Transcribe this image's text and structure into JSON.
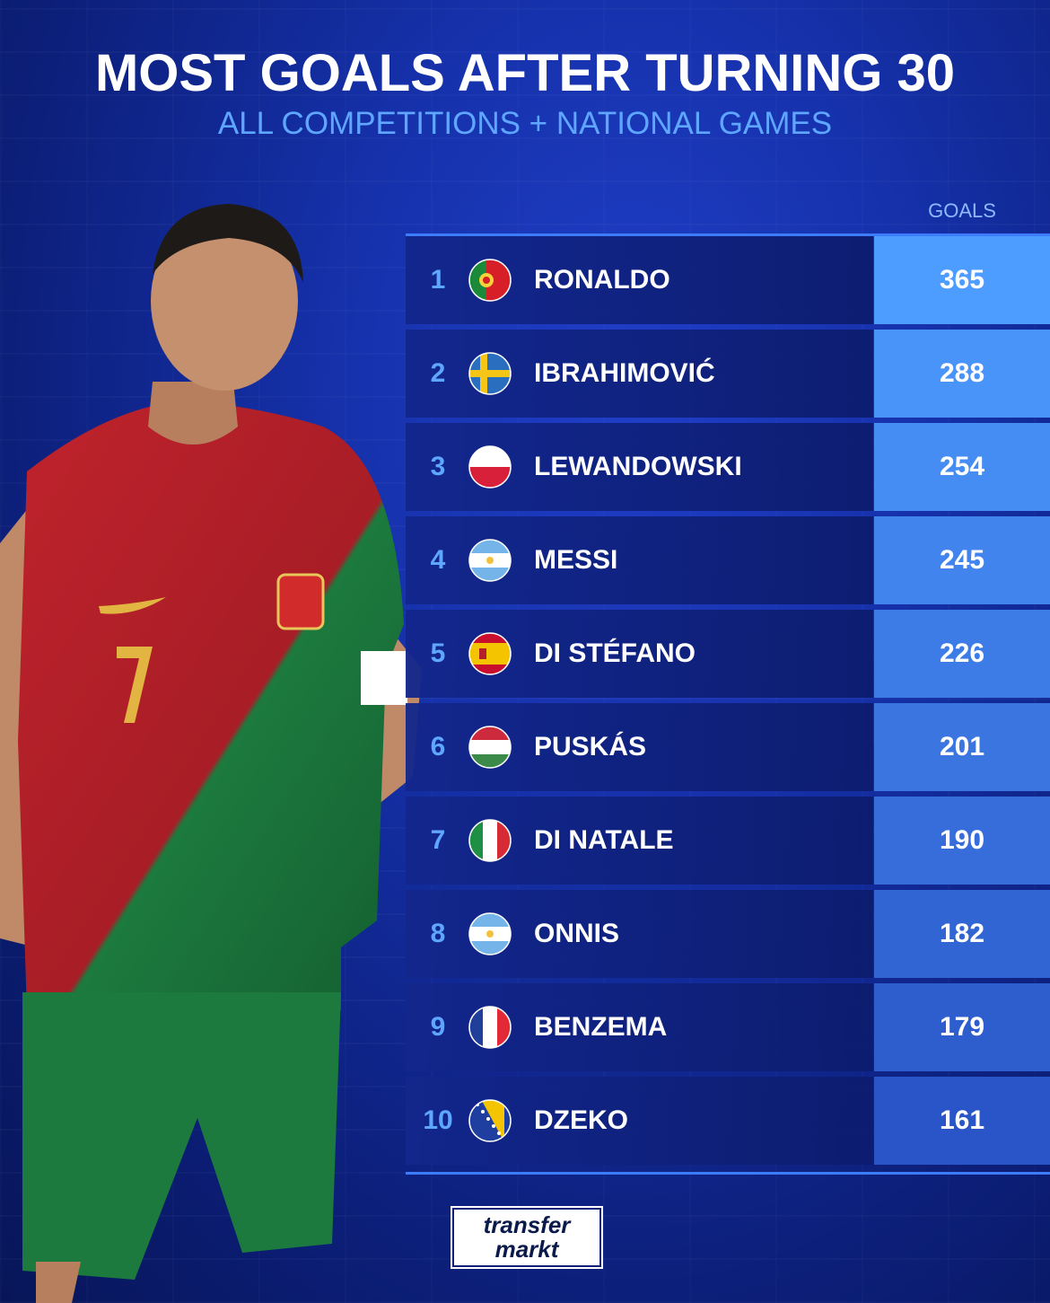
{
  "title": "MOST GOALS AFTER TURNING 30",
  "subtitle": "ALL COMPETITIONS + NATIONAL GAMES",
  "goals_header": "GOALS",
  "logo": {
    "line1": "transfer",
    "line2": "markt"
  },
  "colors": {
    "accent": "#5ea6ff",
    "goals_cell_top": "#4d9cff",
    "goals_cell_bottom": "#2a55c8",
    "row_bg": "#12268c"
  },
  "chart_data": {
    "type": "table",
    "title": "MOST GOALS AFTER TURNING 30",
    "subtitle": "ALL COMPETITIONS + NATIONAL GAMES",
    "columns": [
      "",
      "",
      "",
      "GOALS"
    ],
    "rows": [
      {
        "rank": "1",
        "flag": "portugal-flag-icon",
        "name": "RONALDO",
        "goals": 365
      },
      {
        "rank": "2",
        "flag": "sweden-flag-icon",
        "name": "IBRAHIMOVIĆ",
        "goals": 288
      },
      {
        "rank": "3",
        "flag": "poland-flag-icon",
        "name": "LEWANDOWSKI",
        "goals": 254
      },
      {
        "rank": "4",
        "flag": "argentina-flag-icon",
        "name": "MESSI",
        "goals": 245
      },
      {
        "rank": "5",
        "flag": "spain-flag-icon",
        "name": "DI STÉFANO",
        "goals": 226
      },
      {
        "rank": "6",
        "flag": "hungary-flag-icon",
        "name": "PUSKÁS",
        "goals": 201
      },
      {
        "rank": "7",
        "flag": "italy-flag-icon",
        "name": "DI NATALE",
        "goals": 190
      },
      {
        "rank": "8",
        "flag": "argentina-flag-icon",
        "name": "ONNIS",
        "goals": 182
      },
      {
        "rank": "9",
        "flag": "france-flag-icon",
        "name": "BENZEMA",
        "goals": 179
      },
      {
        "rank": "10",
        "flag": "bosnia-flag-icon",
        "name": "DZEKO",
        "goals": 161
      }
    ]
  }
}
